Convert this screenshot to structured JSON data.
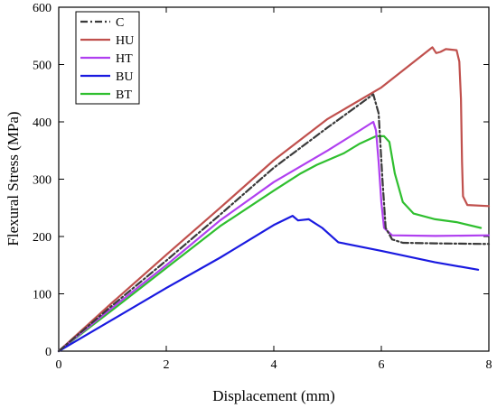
{
  "chart_data": {
    "type": "line",
    "title": "",
    "xlabel": "Displacement (mm)",
    "ylabel": "Flexural Stress (MPa)",
    "xlim": [
      0,
      8
    ],
    "ylim": [
      0,
      600
    ],
    "xticks": [
      0,
      2,
      4,
      6,
      8
    ],
    "yticks": [
      0,
      100,
      200,
      300,
      400,
      500,
      600
    ],
    "grid": false,
    "legend_position": "top-left",
    "series": [
      {
        "name": "C",
        "color": "#3a3a3a",
        "dash": "dashdot",
        "points": [
          [
            0,
            0
          ],
          [
            1,
            80
          ],
          [
            2,
            158
          ],
          [
            3,
            238
          ],
          [
            4,
            320
          ],
          [
            5,
            390
          ],
          [
            5.85,
            448
          ],
          [
            5.95,
            415
          ],
          [
            6.02,
            300
          ],
          [
            6.08,
            215
          ],
          [
            6.2,
            195
          ],
          [
            6.4,
            189
          ],
          [
            7,
            188
          ],
          [
            8,
            187
          ]
        ]
      },
      {
        "name": "HU",
        "color": "#c0504d",
        "dash": "solid",
        "points": [
          [
            0,
            0
          ],
          [
            1,
            85
          ],
          [
            2,
            168
          ],
          [
            3,
            250
          ],
          [
            4,
            333
          ],
          [
            5,
            405
          ],
          [
            6,
            460
          ],
          [
            6.95,
            530
          ],
          [
            7.02,
            520
          ],
          [
            7.1,
            522
          ],
          [
            7.2,
            527
          ],
          [
            7.4,
            525
          ],
          [
            7.45,
            505
          ],
          [
            7.48,
            440
          ],
          [
            7.5,
            330
          ],
          [
            7.52,
            270
          ],
          [
            7.6,
            255
          ],
          [
            8,
            253
          ]
        ]
      },
      {
        "name": "HT",
        "color": "#b040f0",
        "dash": "solid",
        "points": [
          [
            0,
            0
          ],
          [
            1,
            76
          ],
          [
            2,
            150
          ],
          [
            3,
            228
          ],
          [
            4,
            295
          ],
          [
            5,
            350
          ],
          [
            5.6,
            385
          ],
          [
            5.85,
            400
          ],
          [
            5.9,
            385
          ],
          [
            5.95,
            330
          ],
          [
            6.0,
            260
          ],
          [
            6.05,
            215
          ],
          [
            6.2,
            202
          ],
          [
            7,
            201
          ],
          [
            8,
            202
          ]
        ]
      },
      {
        "name": "BU",
        "color": "#1a1ae0",
        "dash": "solid",
        "points": [
          [
            0,
            0
          ],
          [
            1,
            55
          ],
          [
            2,
            110
          ],
          [
            3,
            163
          ],
          [
            4,
            220
          ],
          [
            4.35,
            236
          ],
          [
            4.45,
            228
          ],
          [
            4.65,
            230
          ],
          [
            4.9,
            215
          ],
          [
            5.2,
            190
          ],
          [
            6,
            175
          ],
          [
            7,
            155
          ],
          [
            7.8,
            142
          ]
        ]
      },
      {
        "name": "BT",
        "color": "#2fbf2f",
        "dash": "solid",
        "points": [
          [
            0,
            0
          ],
          [
            1,
            72
          ],
          [
            2,
            145
          ],
          [
            3,
            218
          ],
          [
            4,
            280
          ],
          [
            4.5,
            310
          ],
          [
            4.8,
            325
          ],
          [
            5.3,
            345
          ],
          [
            5.6,
            362
          ],
          [
            5.9,
            375
          ],
          [
            6.05,
            375
          ],
          [
            6.15,
            365
          ],
          [
            6.25,
            310
          ],
          [
            6.4,
            260
          ],
          [
            6.6,
            240
          ],
          [
            7,
            230
          ],
          [
            7.4,
            225
          ],
          [
            7.85,
            215
          ]
        ]
      }
    ]
  }
}
